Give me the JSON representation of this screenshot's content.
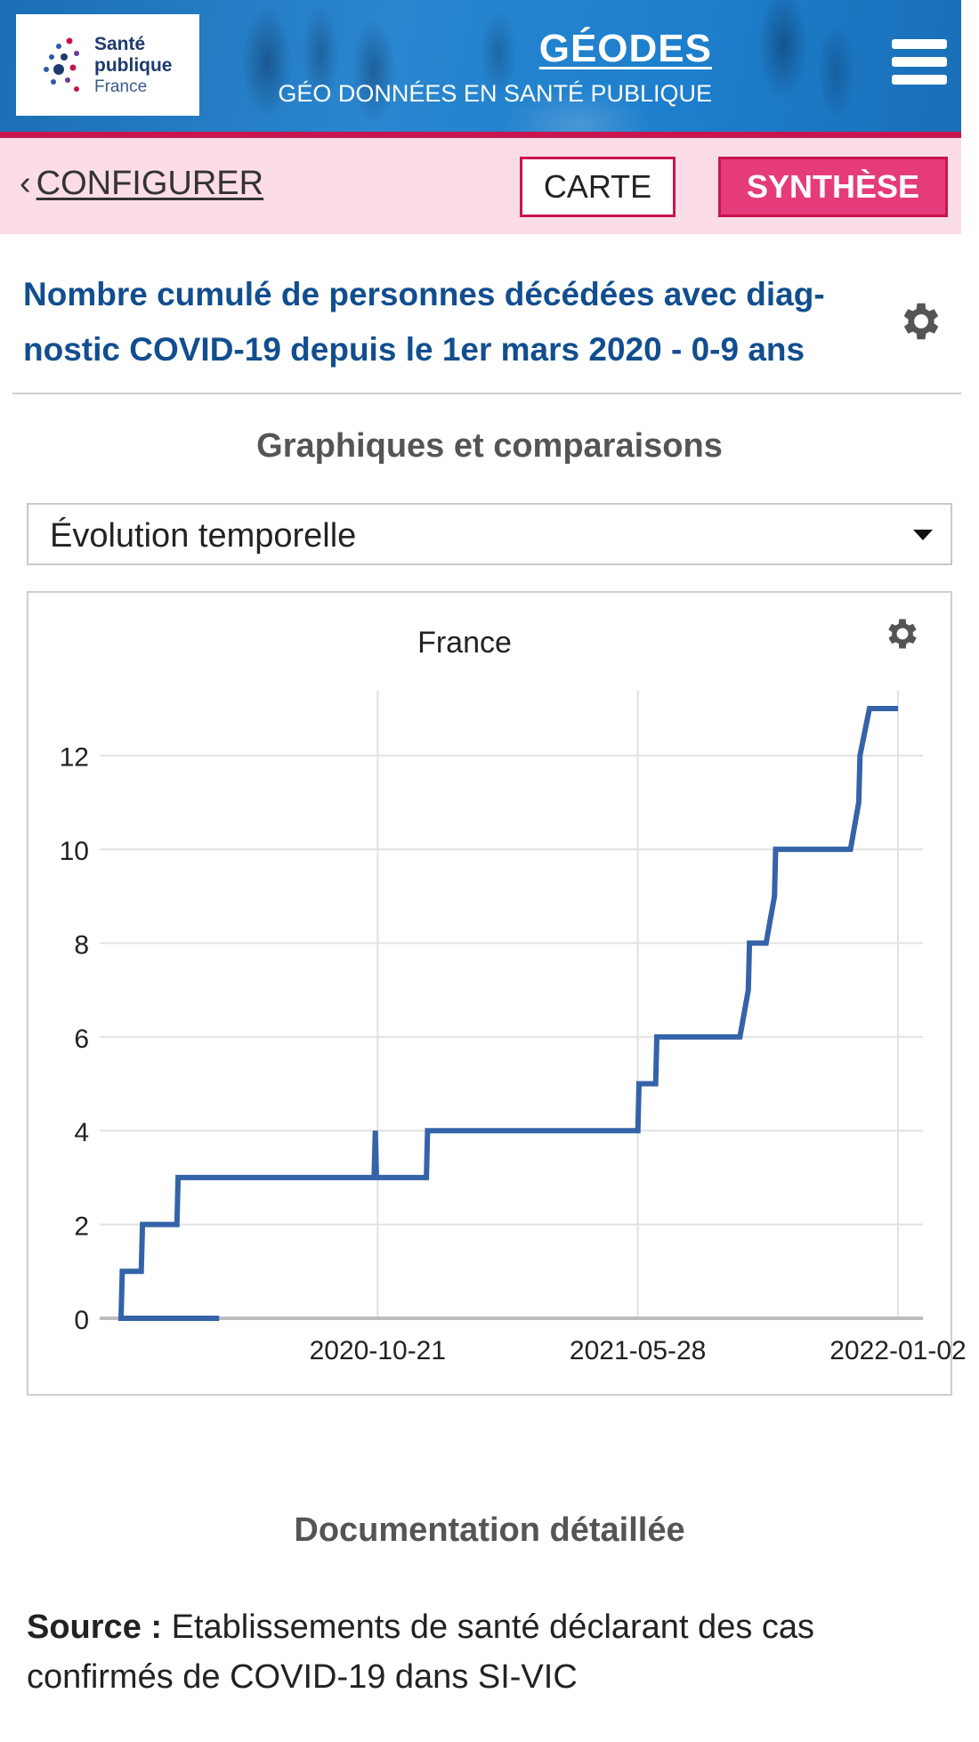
{
  "header": {
    "logo": {
      "line1": "Santé",
      "line2": "publique",
      "line3": "France"
    },
    "brand_title": "GÉODES",
    "brand_subtitle": "GÉO DONNÉES EN SANTÉ PUBLIQUE",
    "menu_icon": "hamburger-menu-icon"
  },
  "nav": {
    "configure_label": "CONFIGURER",
    "carte_label": "CARTE",
    "synthese_label": "SYNTHÈSE"
  },
  "indicator": {
    "title_line1": "Nombre cumulé de personnes décédées avec diag-",
    "title_line2": "nostic COVID-19 depuis le 1er mars 2020 - 0-9 ans",
    "settings_icon": "gear-icon"
  },
  "section": {
    "heading": "Graphiques et comparaisons",
    "select_value": "Évolution temporelle"
  },
  "chart_data": {
    "type": "line",
    "title": "France",
    "xlabel": "",
    "ylabel": "",
    "ylim": [
      0,
      13
    ],
    "yticks": [
      0,
      2,
      4,
      6,
      8,
      10,
      12
    ],
    "xticks": [
      "2020-10-21",
      "2021-05-28",
      "2022-01-02"
    ],
    "grid": true,
    "series": [
      {
        "x": [
          "2020-03-01",
          "2020-03-19",
          "2020-03-20",
          "2020-04-05",
          "2020-04-06",
          "2020-05-05",
          "2020-05-06",
          "2020-10-18",
          "2020-10-19",
          "2020-10-20",
          "2020-12-01",
          "2020-12-02",
          "2021-05-28",
          "2021-05-29",
          "2021-06-12",
          "2021-06-13",
          "2021-08-22",
          "2021-08-29",
          "2021-08-30",
          "2021-09-13",
          "2021-09-20",
          "2021-09-21",
          "2021-11-23",
          "2021-11-30",
          "2021-12-01",
          "2021-12-09",
          "2022-01-02"
        ],
        "values": [
          0,
          0,
          1,
          1,
          2,
          2,
          3,
          3,
          4,
          3,
          3,
          4,
          4,
          5,
          5,
          6,
          6,
          7,
          8,
          8,
          9,
          10,
          10,
          11,
          12,
          13,
          13
        ]
      }
    ]
  },
  "documentation": {
    "heading": "Documentation détaillée",
    "source_label": "Source :",
    "source_text": " Etablissements de santé déclarant des cas confirmés de COVID-19 dans SI-VIC"
  }
}
